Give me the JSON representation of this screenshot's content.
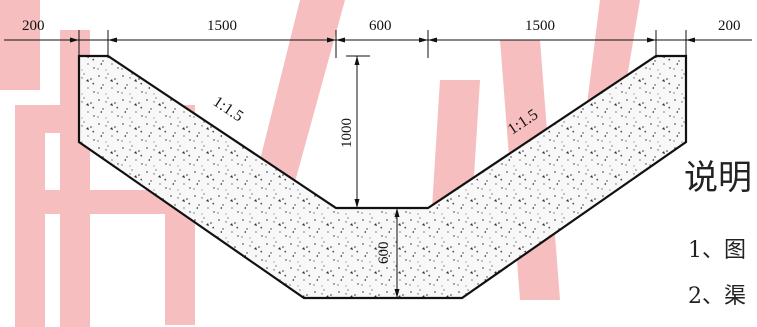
{
  "colors": {
    "watermark": "#f3a9a9",
    "line": "#111111",
    "fill": "#f7f7f7"
  },
  "watermark": {
    "glyph": "用",
    "glyph2": "心"
  },
  "dimensions_top": [
    "200",
    "1500",
    "600",
    "1500",
    "200"
  ],
  "dimension_depth": "1000",
  "dimension_thickness": "600",
  "slope_left": "1:1.5",
  "slope_right": "1:1.5",
  "notes": {
    "title": "说明",
    "items": [
      "1、图",
      "2、渠"
    ]
  }
}
